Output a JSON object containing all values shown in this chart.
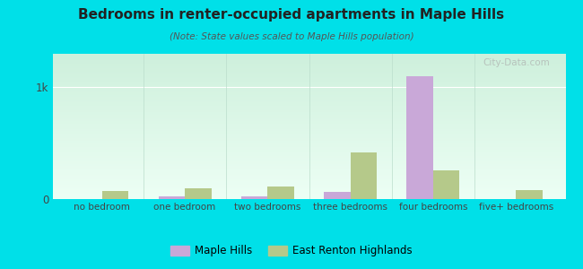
{
  "title": "Bedrooms in renter-occupied apartments in Maple Hills",
  "subtitle": "(Note: State values scaled to Maple Hills population)",
  "categories": [
    "no bedroom",
    "one bedroom",
    "two bedrooms",
    "three bedrooms",
    "four bedrooms",
    "five+ bedrooms"
  ],
  "maple_hills": [
    4,
    28,
    22,
    65,
    1100,
    4
  ],
  "east_renton": [
    75,
    95,
    110,
    420,
    260,
    80
  ],
  "maple_hills_color": "#c9a8d8",
  "east_renton_color": "#b5c98a",
  "background_outer": "#00e0e8",
  "title_color": "#222222",
  "subtitle_color": "#555555",
  "tick_label_color": "#444444",
  "ytick_label": "1k",
  "ytick_value": 1000,
  "ylim": [
    0,
    1300
  ],
  "watermark": "City-Data.com",
  "legend_maple": "Maple Hills",
  "legend_east": "East Renton Highlands",
  "bar_width": 0.32
}
